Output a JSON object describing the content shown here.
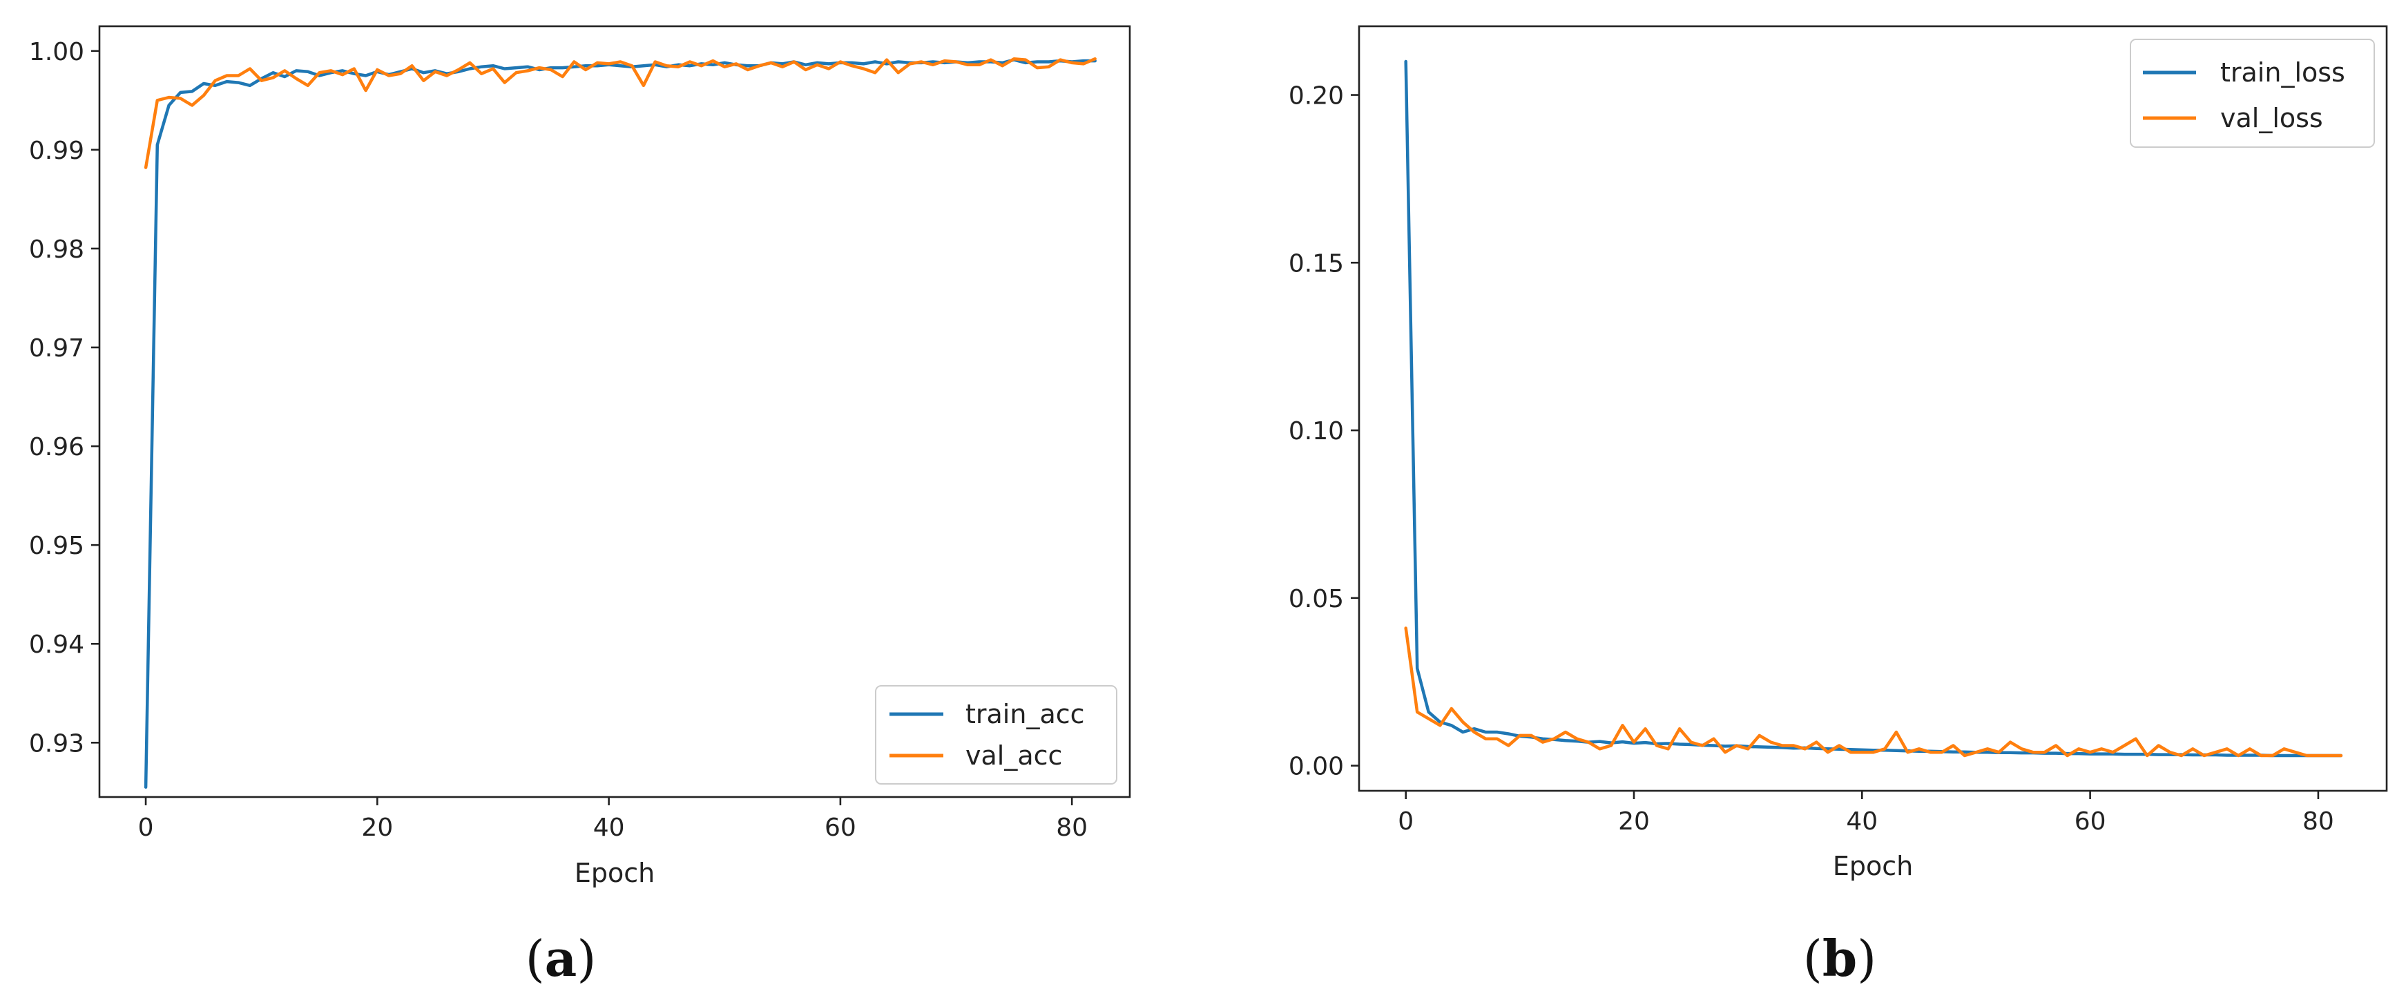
{
  "colors": {
    "train": "#1f77b4",
    "val": "#ff7f0e"
  },
  "chart_data": [
    {
      "type": "line",
      "caption": "a",
      "xlabel": "Epoch",
      "ylabel": "",
      "xlim": [
        -4,
        85
      ],
      "ylim": [
        0.9245,
        1.0025
      ],
      "xticks": [
        0,
        20,
        40,
        60,
        80
      ],
      "yticks": [
        0.93,
        0.94,
        0.95,
        0.96,
        0.97,
        0.98,
        0.99,
        1.0
      ],
      "ytick_labels": [
        "0.93",
        "0.94",
        "0.95",
        "0.96",
        "0.97",
        "0.98",
        "0.99",
        "1.00"
      ],
      "legend": "lower-right",
      "grid": false,
      "series": [
        {
          "name": "train_acc",
          "color": "#1f77b4",
          "values": [
            0.9255,
            0.9905,
            0.9945,
            0.9958,
            0.9959,
            0.9967,
            0.9965,
            0.9969,
            0.9968,
            0.9965,
            0.9972,
            0.9978,
            0.9974,
            0.998,
            0.9979,
            0.9975,
            0.9978,
            0.998,
            0.9977,
            0.9975,
            0.9979,
            0.9976,
            0.9979,
            0.9982,
            0.9978,
            0.998,
            0.9977,
            0.9979,
            0.9982,
            0.9984,
            0.9985,
            0.9982,
            0.9983,
            0.9984,
            0.9981,
            0.9983,
            0.9983,
            0.9984,
            0.9985,
            0.9985,
            0.9986,
            0.9985,
            0.9984,
            0.9985,
            0.9986,
            0.9984,
            0.9986,
            0.9985,
            0.9987,
            0.9986,
            0.9988,
            0.9986,
            0.9985,
            0.9985,
            0.9988,
            0.9987,
            0.9989,
            0.9986,
            0.9988,
            0.9987,
            0.9988,
            0.9988,
            0.9987,
            0.9989,
            0.9987,
            0.9989,
            0.9988,
            0.9988,
            0.9989,
            0.9988,
            0.9989,
            0.9988,
            0.9989,
            0.9989,
            0.9988,
            0.9991,
            0.9988,
            0.9989,
            0.9989,
            0.999,
            0.9989,
            0.999,
            0.999
          ]
        },
        {
          "name": "val_acc",
          "color": "#ff7f0e",
          "values": [
            0.9882,
            0.995,
            0.9953,
            0.9952,
            0.9945,
            0.9955,
            0.997,
            0.9975,
            0.9975,
            0.9982,
            0.997,
            0.9973,
            0.998,
            0.9972,
            0.9965,
            0.9978,
            0.998,
            0.9976,
            0.9982,
            0.996,
            0.9981,
            0.9975,
            0.9977,
            0.9985,
            0.997,
            0.9979,
            0.9975,
            0.9981,
            0.9988,
            0.9977,
            0.9982,
            0.9968,
            0.9978,
            0.998,
            0.9983,
            0.9981,
            0.9974,
            0.9989,
            0.9981,
            0.9988,
            0.9987,
            0.9989,
            0.9985,
            0.9965,
            0.9989,
            0.9985,
            0.9984,
            0.9989,
            0.9985,
            0.999,
            0.9984,
            0.9987,
            0.9981,
            0.9985,
            0.9988,
            0.9984,
            0.9989,
            0.9981,
            0.9986,
            0.9982,
            0.9989,
            0.9985,
            0.9982,
            0.9978,
            0.9991,
            0.9978,
            0.9987,
            0.9989,
            0.9986,
            0.999,
            0.9989,
            0.9986,
            0.9986,
            0.9991,
            0.9985,
            0.9992,
            0.9991,
            0.9983,
            0.9984,
            0.9991,
            0.9988,
            0.9987,
            0.9992
          ]
        }
      ]
    },
    {
      "type": "line",
      "caption": "b",
      "xlabel": "Epoch",
      "ylabel": "",
      "xlim": [
        -4.1,
        86
      ],
      "ylim": [
        -0.0075,
        0.2205
      ],
      "xticks": [
        0,
        20,
        40,
        60,
        80
      ],
      "yticks": [
        0.0,
        0.05,
        0.1,
        0.15,
        0.2
      ],
      "ytick_labels": [
        "0.00",
        "0.05",
        "0.10",
        "0.15",
        "0.20"
      ],
      "legend": "upper-right",
      "grid": false,
      "series": [
        {
          "name": "train_loss",
          "color": "#1f77b4",
          "values": [
            0.21,
            0.029,
            0.016,
            0.013,
            0.012,
            0.01,
            0.011,
            0.01,
            0.01,
            0.0095,
            0.0088,
            0.0085,
            0.008,
            0.0078,
            0.0075,
            0.0073,
            0.007,
            0.0072,
            0.0068,
            0.0071,
            0.0067,
            0.0069,
            0.0065,
            0.0066,
            0.0064,
            0.0063,
            0.0061,
            0.006,
            0.0058,
            0.0059,
            0.0057,
            0.0056,
            0.0055,
            0.0054,
            0.0052,
            0.0053,
            0.0051,
            0.005,
            0.0049,
            0.0048,
            0.0047,
            0.0046,
            0.0046,
            0.0045,
            0.0044,
            0.0043,
            0.0043,
            0.0042,
            0.0041,
            0.0041,
            0.004,
            0.004,
            0.0039,
            0.0039,
            0.0038,
            0.0038,
            0.0037,
            0.0037,
            0.0036,
            0.0036,
            0.0035,
            0.0035,
            0.0035,
            0.0034,
            0.0034,
            0.0034,
            0.0033,
            0.0033,
            0.0033,
            0.0032,
            0.0032,
            0.0032,
            0.0031,
            0.0031,
            0.0031,
            0.0031,
            0.003,
            0.003,
            0.003,
            0.003,
            0.003,
            0.003,
            0.003
          ]
        },
        {
          "name": "val_loss",
          "color": "#ff7f0e",
          "values": [
            0.041,
            0.016,
            0.014,
            0.012,
            0.017,
            0.013,
            0.01,
            0.008,
            0.008,
            0.006,
            0.009,
            0.009,
            0.007,
            0.008,
            0.01,
            0.008,
            0.007,
            0.005,
            0.006,
            0.012,
            0.007,
            0.011,
            0.006,
            0.005,
            0.011,
            0.007,
            0.006,
            0.008,
            0.004,
            0.006,
            0.005,
            0.009,
            0.007,
            0.006,
            0.006,
            0.005,
            0.007,
            0.004,
            0.006,
            0.004,
            0.004,
            0.004,
            0.005,
            0.01,
            0.004,
            0.005,
            0.004,
            0.004,
            0.006,
            0.003,
            0.004,
            0.005,
            0.004,
            0.007,
            0.005,
            0.004,
            0.004,
            0.006,
            0.003,
            0.005,
            0.004,
            0.005,
            0.004,
            0.006,
            0.008,
            0.003,
            0.006,
            0.004,
            0.003,
            0.005,
            0.003,
            0.004,
            0.005,
            0.003,
            0.005,
            0.003,
            0.003,
            0.005,
            0.004,
            0.003,
            0.003,
            0.003,
            0.003
          ]
        }
      ]
    }
  ]
}
